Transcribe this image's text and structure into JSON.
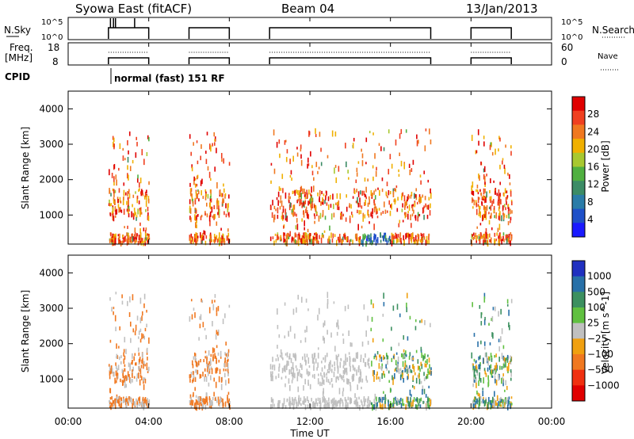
{
  "header": {
    "station": "Syowa East (fitACF)",
    "beam": "Beam 04",
    "date": "13/Jan/2013"
  },
  "status_panels": {
    "nsky_label": "N.Sky",
    "nsky_ticks": [
      "10^5",
      "10^0"
    ],
    "nsky_right_ticks": [
      "10^5",
      "10^0"
    ],
    "nsearch_label": "N.Search",
    "freq_label_1": "Freq.",
    "freq_label_2": "[MHz]",
    "freq_ticks": [
      "18",
      "8"
    ],
    "nave_ticks": [
      "60",
      "0"
    ],
    "nave_label": "Nave",
    "cpid_label": "CPID",
    "cpid_text": "normal (fast) 151 RF"
  },
  "chart_data": [
    {
      "type": "heatmap",
      "name": "Power",
      "ylabel": "Slant Range [km]",
      "xlabel": "Time UT",
      "x_ticks": [
        "00:00",
        "04:00",
        "08:00",
        "12:00",
        "16:00",
        "20:00",
        "00:00"
      ],
      "xlim_hours": [
        0,
        24
      ],
      "y_ticks": [
        "1000",
        "2000",
        "3000",
        "4000"
      ],
      "ylim_km": [
        180,
        4500
      ],
      "colorbar": {
        "label": "Power [dB]",
        "ticks": [
          "4",
          "8",
          "12",
          "16",
          "20",
          "24",
          "28"
        ],
        "colors": [
          "#1a1aff",
          "#1e50c8",
          "#2a7ca8",
          "#3c8c66",
          "#50b040",
          "#a8c830",
          "#f0b000",
          "#f07820",
          "#f04020",
          "#e00000"
        ]
      },
      "echo_periods_hours": [
        [
          2.0,
          4.0
        ],
        [
          6.0,
          8.0
        ],
        [
          10.0,
          18.0
        ],
        [
          20.0,
          22.0
        ]
      ]
    },
    {
      "type": "heatmap",
      "name": "Velocity",
      "ylabel": "Slant Range [km]",
      "xlabel": "Time UT",
      "x_ticks": [
        "00:00",
        "04:00",
        "08:00",
        "12:00",
        "16:00",
        "20:00",
        "00:00"
      ],
      "xlim_hours": [
        0,
        24
      ],
      "y_ticks": [
        "1000",
        "2000",
        "3000",
        "4000"
      ],
      "ylim_km": [
        180,
        4500
      ],
      "colorbar": {
        "label": "Velocity [m s^-1]",
        "ticks": [
          "1000",
          "500",
          "100",
          "25",
          "−25",
          "−100",
          "−500",
          "−1000"
        ],
        "colors": [
          "#2030c0",
          "#2870a8",
          "#3c9060",
          "#60c040",
          "#c0c0c0",
          "#f0a010",
          "#f07820",
          "#f03010",
          "#e00000"
        ]
      },
      "echo_periods_hours": [
        [
          2.0,
          4.0
        ],
        [
          6.0,
          8.0
        ],
        [
          10.0,
          18.0
        ],
        [
          20.0,
          22.0
        ]
      ]
    }
  ]
}
